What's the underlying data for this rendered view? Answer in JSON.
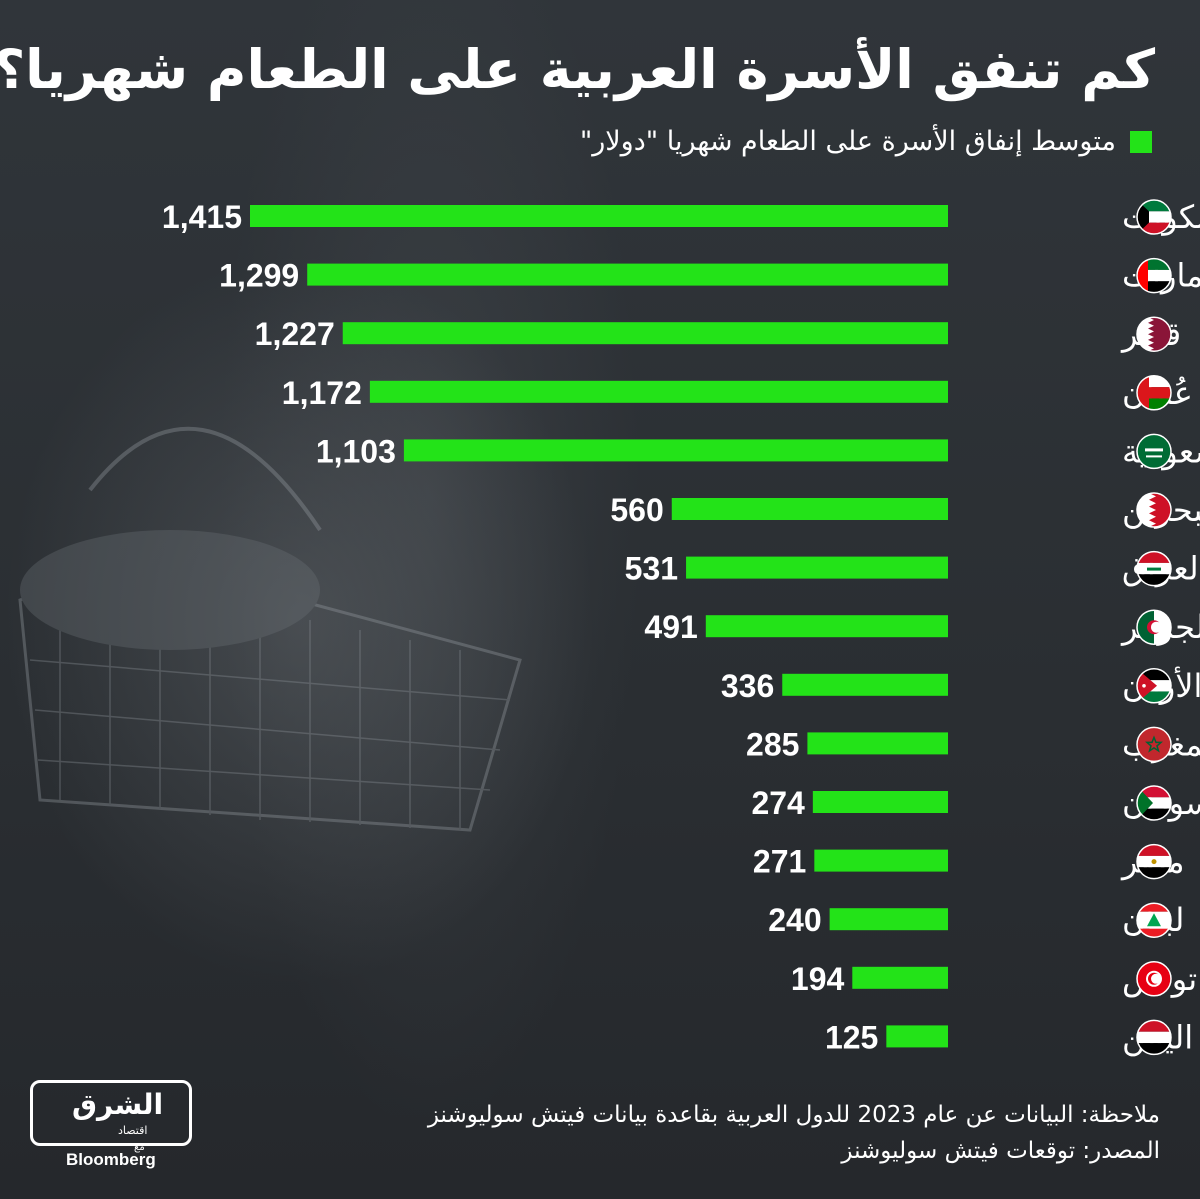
{
  "title": "كم تنفق الأسرة العربية على الطعام شهريا؟",
  "legend_label": "متوسط إنفاق الأسرة على الطعام شهريا \"دولار\"",
  "colors": {
    "bar": "#23e318",
    "text": "#ffffff",
    "background": "#2b2f33"
  },
  "chart_data": {
    "type": "bar",
    "orientation": "horizontal",
    "categories": [
      "الكويت",
      "الإمارات",
      "قطر",
      "عُمان",
      "السعودية",
      "البحرين",
      "العراق",
      "الجزائر",
      "الأردن",
      "المغرب",
      "السودان",
      "مصر",
      "لبنان",
      "تونس",
      "اليمن"
    ],
    "values": [
      1415,
      1299,
      1227,
      1172,
      1103,
      560,
      531,
      491,
      336,
      285,
      274,
      271,
      240,
      194,
      125
    ],
    "value_labels": [
      "1,415",
      "1,299",
      "1,227",
      "1,172",
      "1,103",
      "560",
      "531",
      "491",
      "336",
      "285",
      "274",
      "271",
      "240",
      "194",
      "125"
    ],
    "flags": [
      "kuwait-flag-icon",
      "uae-flag-icon",
      "qatar-flag-icon",
      "oman-flag-icon",
      "saudi-flag-icon",
      "bahrain-flag-icon",
      "iraq-flag-icon",
      "algeria-flag-icon",
      "jordan-flag-icon",
      "morocco-flag-icon",
      "sudan-flag-icon",
      "egypt-flag-icon",
      "lebanon-flag-icon",
      "tunisia-flag-icon",
      "yemen-flag-icon"
    ],
    "series": [
      {
        "name": "متوسط إنفاق الأسرة على الطعام شهريا \"دولار\"",
        "values": [
          1415,
          1299,
          1227,
          1172,
          1103,
          560,
          531,
          491,
          336,
          285,
          274,
          271,
          240,
          194,
          125
        ]
      }
    ],
    "legend": "top-right",
    "grid": false
  },
  "footer": {
    "note": "ملاحظة: البيانات عن عام 2023 للدول العربية بقاعدة بيانات فيتش سوليوشنز",
    "source": "المصدر: توقعات فيتش سوليوشنز"
  },
  "logo": {
    "arabic": "الشرق",
    "sub": "اقتصاد",
    "with": "مع",
    "english": "Bloomberg"
  }
}
